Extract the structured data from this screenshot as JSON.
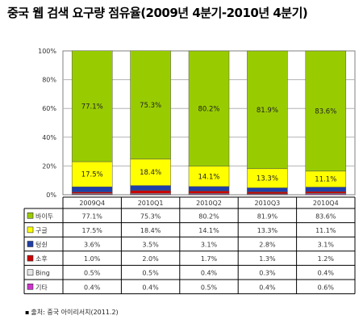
{
  "title": "중국 웹 검색 요구량 점유율(2009년 4분기-2010년 4분기)",
  "source": "출처: 중국 아이리서치(2011.2)",
  "chart_data": {
    "type": "bar",
    "stacked": true,
    "categories": [
      "2009Q4",
      "2010Q1",
      "2010Q2",
      "2010Q3",
      "2010Q4"
    ],
    "ylim": [
      0,
      100
    ],
    "yticks": [
      "0%",
      "20%",
      "40%",
      "60%",
      "80%",
      "100%"
    ],
    "grid": true,
    "series": [
      {
        "name": "바이두",
        "color": "#99cc00",
        "values": [
          77.1,
          75.3,
          80.2,
          81.9,
          83.6
        ],
        "labels": [
          "77.1%",
          "75.3%",
          "80.2%",
          "81.9%",
          "83.6%"
        ]
      },
      {
        "name": "구글",
        "color": "#ffff00",
        "values": [
          17.5,
          18.4,
          14.1,
          13.3,
          11.1
        ],
        "labels": [
          "17.5%",
          "18.4%",
          "14.1%",
          "13.3%",
          "11.1%"
        ]
      },
      {
        "name": "텅쉰",
        "color": "#1f3fa8",
        "values": [
          3.6,
          3.5,
          3.1,
          2.8,
          3.1
        ],
        "labels": [
          "3.6%",
          "3.5%",
          "3.1%",
          "2.8%",
          "3.1%"
        ]
      },
      {
        "name": "소후",
        "color": "#cc0000",
        "values": [
          1.0,
          2.0,
          1.7,
          1.3,
          1.2
        ],
        "labels": [
          "1.0%",
          "2.0%",
          "1.7%",
          "1.3%",
          "1.2%"
        ]
      },
      {
        "name": "Bing",
        "color": "#e6e6e6",
        "values": [
          0.5,
          0.5,
          0.4,
          0.3,
          0.4
        ],
        "labels": [
          "0.5%",
          "0.5%",
          "0.4%",
          "0.3%",
          "0.4%"
        ]
      },
      {
        "name": "기타",
        "color": "#cc33cc",
        "values": [
          0.4,
          0.4,
          0.5,
          0.4,
          0.6
        ],
        "labels": [
          "0.4%",
          "0.4%",
          "0.5%",
          "0.4%",
          "0.6%"
        ]
      }
    ],
    "stack_order": [
      "기타",
      "Bing",
      "소후",
      "텅쉰",
      "구글",
      "바이두"
    ],
    "chart_labels_for": [
      "바이두",
      "구글"
    ],
    "table": true
  },
  "colors": {
    "background": "#ffffff",
    "grid": "#b3b3b3",
    "plot_border": "#808080"
  }
}
